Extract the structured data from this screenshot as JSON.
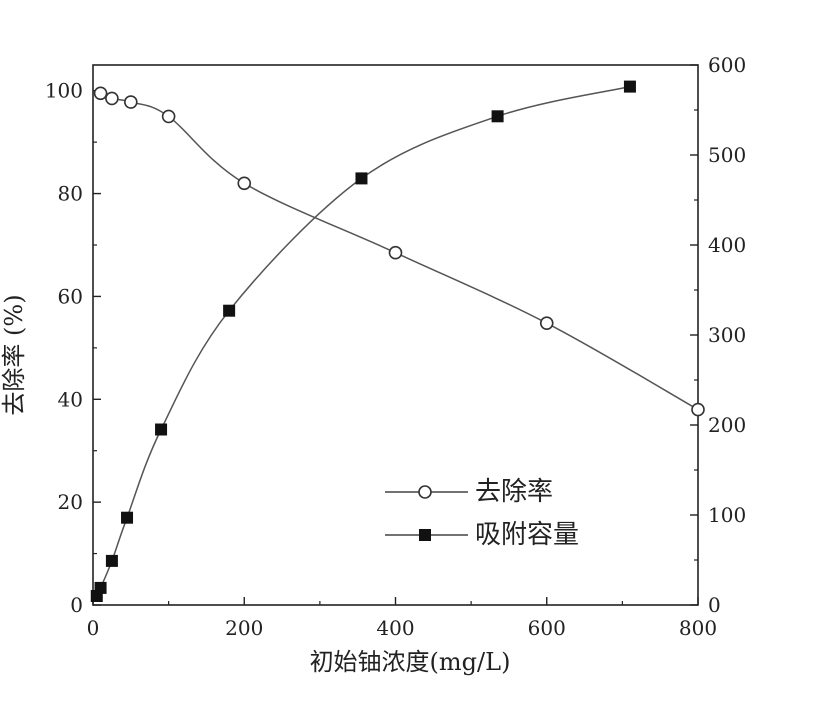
{
  "chart_data": {
    "type": "line",
    "xlabel": "初始铀浓度(mg/L)",
    "ylabel_left": "去除率 (%)",
    "ylabel_right": "",
    "xlim": [
      0,
      800
    ],
    "ylim_left": [
      0,
      105
    ],
    "ylim_right": [
      0,
      600
    ],
    "x_ticks": [
      0,
      200,
      400,
      600,
      800
    ],
    "y_left_ticks": [
      0,
      20,
      40,
      60,
      80,
      100
    ],
    "y_right_ticks": [
      0,
      100,
      200,
      300,
      400,
      500,
      600
    ],
    "grid": false,
    "legend_position": "lower-right",
    "series": [
      {
        "name": "去除率",
        "axis": "left",
        "marker": "open-circle",
        "color": "#333333",
        "x": [
          10,
          25,
          50,
          100,
          200,
          400,
          600,
          800
        ],
        "y": [
          99.5,
          98.5,
          97.8,
          95.0,
          82.0,
          68.5,
          54.8,
          38.0
        ]
      },
      {
        "name": "吸附容量",
        "axis": "right",
        "marker": "filled-square",
        "color": "#111111",
        "x": [
          5,
          10,
          25,
          45,
          90,
          180,
          355,
          535,
          710
        ],
        "y": [
          10,
          19,
          49,
          97,
          195,
          327,
          474,
          543,
          576
        ]
      }
    ]
  }
}
